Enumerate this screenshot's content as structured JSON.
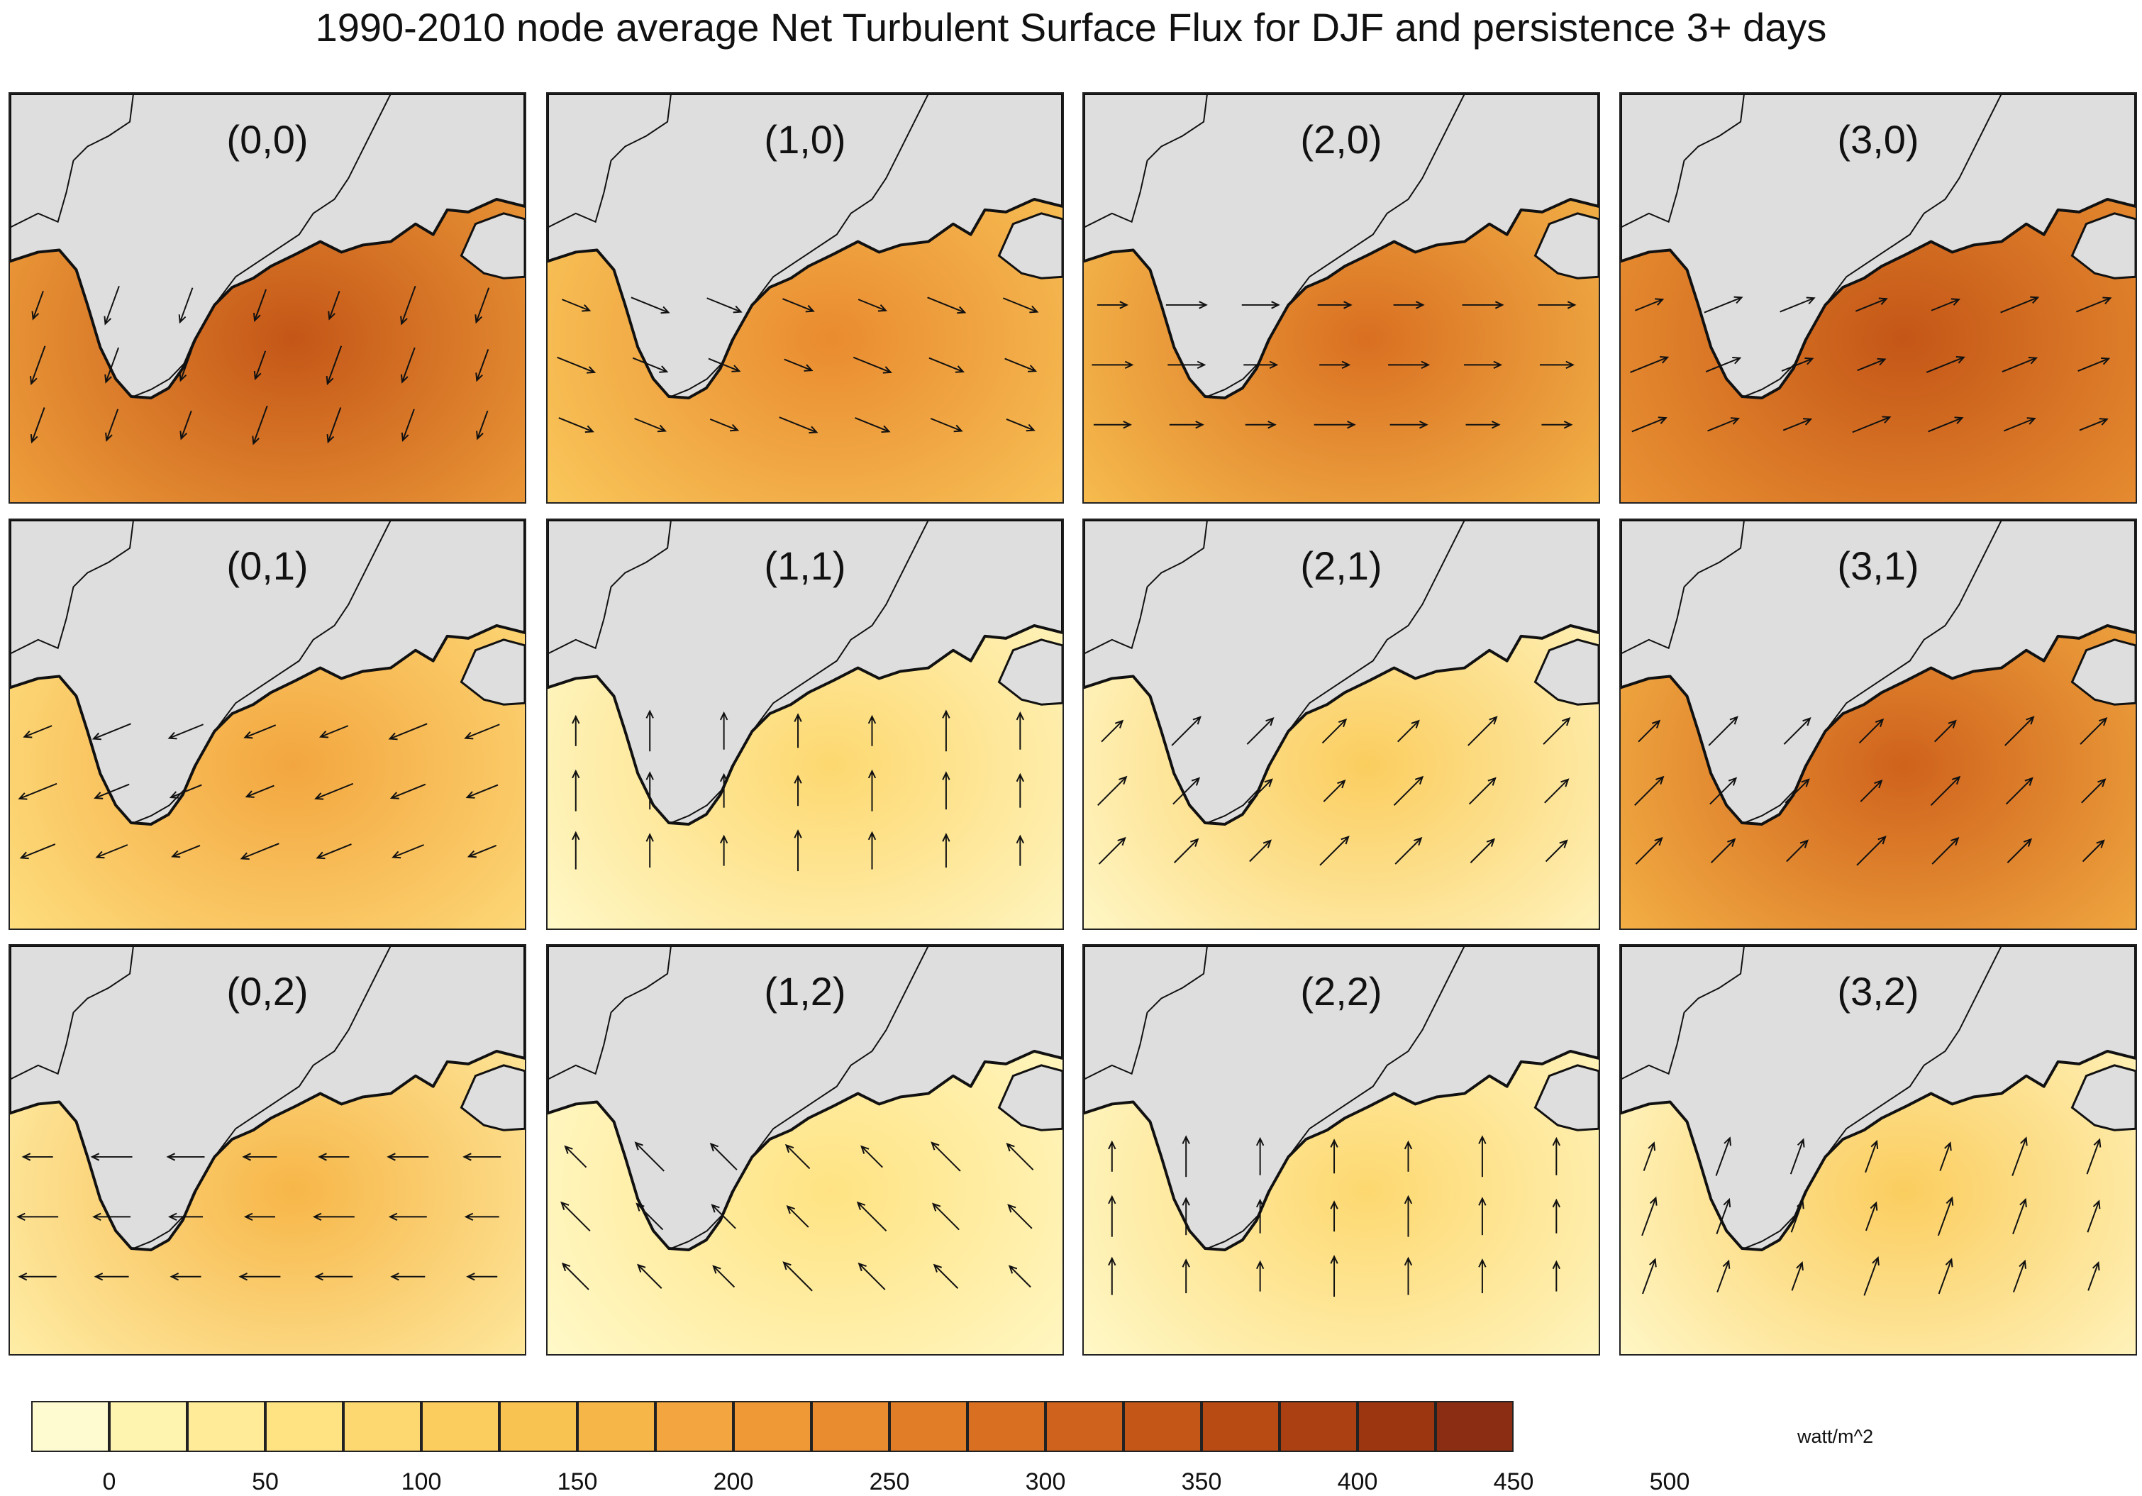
{
  "title": "1990-2010 node average Net Turbulent Surface Flux for DJF and persistence 3+ days",
  "units": "watt/m^2",
  "colorbar": {
    "tick_labels": [
      "0",
      "50",
      "100",
      "150",
      "200",
      "250",
      "300",
      "350",
      "400",
      "450",
      "500"
    ],
    "colors": [
      "#fffbd0",
      "#fff3b0",
      "#ffeb98",
      "#ffe383",
      "#fdd870",
      "#fbcd5f",
      "#f9c352",
      "#f7b648",
      "#f3a63f",
      "#ee9836",
      "#e98b2f",
      "#e27d27",
      "#d96f21",
      "#cf621c",
      "#c45617",
      "#b84b14",
      "#ab4112",
      "#9c3611",
      "#8a2d13"
    ]
  },
  "nodes": [
    {
      "label": "(0,0)",
      "level": 0.75,
      "wind": "ssw"
    },
    {
      "label": "(1,0)",
      "level": 0.55,
      "wind": "ese"
    },
    {
      "label": "(2,0)",
      "level": 0.65,
      "wind": "e"
    },
    {
      "label": "(3,0)",
      "level": 0.8,
      "wind": "ene"
    },
    {
      "label": "(0,1)",
      "level": 0.45,
      "wind": "wsw"
    },
    {
      "label": "(1,1)",
      "level": 0.2,
      "wind": "n"
    },
    {
      "label": "(2,1)",
      "level": 0.3,
      "wind": "ne"
    },
    {
      "label": "(3,1)",
      "level": 0.7,
      "wind": "ne"
    },
    {
      "label": "(0,2)",
      "level": 0.38,
      "wind": "w"
    },
    {
      "label": "(1,2)",
      "level": 0.18,
      "wind": "nw"
    },
    {
      "label": "(2,2)",
      "level": 0.2,
      "wind": "n"
    },
    {
      "label": "(3,2)",
      "level": 0.3,
      "wind": "nne"
    }
  ]
}
